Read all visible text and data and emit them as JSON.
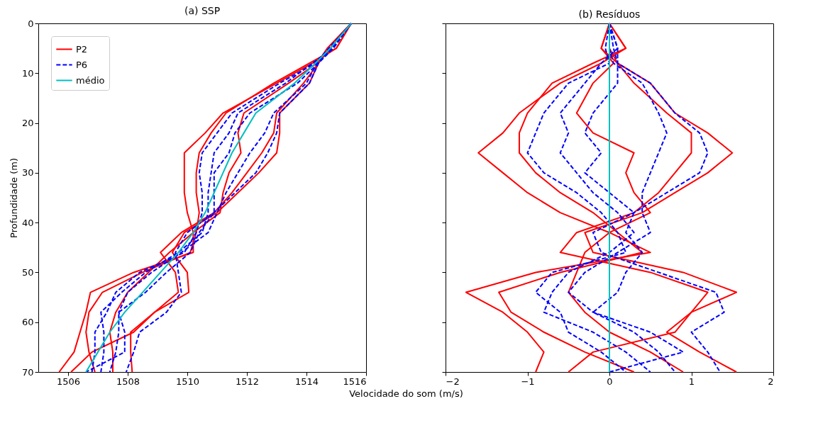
{
  "chart_data": [
    {
      "type": "line",
      "title": "(a) SSP",
      "xlabel": "Velocidade do som (m/s)",
      "ylabel": "Profundidade (m)",
      "xlim": [
        1505,
        1516
      ],
      "xticks": [
        1506,
        1508,
        1510,
        1512,
        1514,
        1516
      ],
      "ylim": [
        70,
        0
      ],
      "yticks": [
        0,
        10,
        20,
        30,
        40,
        50,
        60,
        70
      ],
      "grid": false,
      "legend": "top left",
      "series": [
        {
          "name": "P2",
          "color": "#ff0000",
          "line_style": "solid",
          "x": [
            1515.5,
            1515.0,
            1514.2,
            1513.0,
            1511.2,
            1510.6,
            1509.9,
            1509.9,
            1509.9,
            1510.0,
            1510.2,
            1510.2,
            1508.2,
            1506.75,
            1506.6,
            1506.4,
            1506.2,
            1505.7
          ],
          "values": [
            0,
            5,
            8,
            12,
            18,
            22,
            26,
            30,
            34,
            38,
            42,
            46,
            50,
            54,
            58,
            62,
            66,
            70
          ]
        },
        {
          "color": "#ff0000",
          "line_style": "solid",
          "x": [
            1515.5,
            1514.7,
            1514.4,
            1514.1,
            1513.1,
            1513.1,
            1513.0,
            1512.4,
            1511.7,
            1511.0,
            1509.9,
            1509.5,
            1510.0,
            1510.05,
            1508.9,
            1508.1,
            1508.1,
            1508.15
          ],
          "values": [
            0,
            5,
            8,
            12,
            18,
            22,
            26,
            30,
            34,
            38,
            42,
            46,
            50,
            54,
            58,
            62,
            66,
            70
          ]
        },
        {
          "color": "#ff0000",
          "line_style": "solid",
          "x": [
            1515.5,
            1515.0,
            1514.1,
            1512.9,
            1511.3,
            1510.8,
            1510.4,
            1510.3,
            1510.3,
            1510.4,
            1510.3,
            1510.1,
            1508.5,
            1507.15,
            1506.7,
            1506.6,
            1506.7,
            1506.9
          ],
          "values": [
            0,
            5,
            8,
            12,
            18,
            22,
            26,
            30,
            34,
            38,
            42,
            46,
            50,
            54,
            58,
            62,
            66,
            70
          ]
        },
        {
          "color": "#ff0000",
          "line_style": "solid",
          "x": [
            1515.5,
            1514.7,
            1514.35,
            1513.4,
            1511.9,
            1511.7,
            1511.8,
            1511.4,
            1511.2,
            1511.1,
            1510.2,
            1509.4,
            1508.7,
            1508.0,
            1507.6,
            1507.4,
            1507.5,
            1507.5
          ],
          "values": [
            0,
            5,
            8,
            12,
            18,
            22,
            26,
            30,
            34,
            38,
            42,
            46,
            50,
            54,
            58,
            62,
            66,
            70
          ]
        },
        {
          "color": "#ff0000",
          "line_style": "solid",
          "x": [
            1515.5,
            1514.8,
            1514.4,
            1513.9,
            1513.0,
            1512.9,
            1512.5,
            1512.0,
            1511.5,
            1510.9,
            1509.8,
            1509.1,
            1509.6,
            1509.7,
            1508.9,
            1508.2,
            1506.8,
            1506.1
          ],
          "values": [
            0,
            5,
            8,
            12,
            18,
            22,
            26,
            30,
            34,
            38,
            42,
            46,
            50,
            54,
            58,
            62,
            66,
            70
          ]
        },
        {
          "name": "P6",
          "color": "#0000ff",
          "line_style": "dashed",
          "x": [
            1515.5,
            1514.75,
            1514.3,
            1513.1,
            1511.5,
            1511.0,
            1510.5,
            1510.4,
            1510.5,
            1510.5,
            1510.3,
            1509.9,
            1508.4,
            1507.6,
            1507.3,
            1506.9,
            1506.9,
            1506.8
          ],
          "values": [
            0,
            5,
            8,
            12,
            18,
            22,
            26,
            30,
            34,
            38,
            42,
            46,
            50,
            54,
            58,
            62,
            66,
            70
          ]
        },
        {
          "color": "#0000ff",
          "line_style": "dashed",
          "x": [
            1515.5,
            1514.9,
            1514.4,
            1514.1,
            1513.1,
            1513.0,
            1512.7,
            1512.3,
            1511.6,
            1510.9,
            1510.0,
            1509.6,
            1509.7,
            1509.8,
            1509.3,
            1508.4,
            1508.2,
            1507.95
          ],
          "values": [
            0,
            5,
            8,
            12,
            18,
            22,
            26,
            30,
            34,
            38,
            42,
            46,
            50,
            54,
            58,
            62,
            66,
            70
          ]
        },
        {
          "color": "#0000ff",
          "line_style": "dashed",
          "x": [
            1515.5,
            1514.85,
            1514.4,
            1513.7,
            1512.1,
            1511.6,
            1511.4,
            1510.9,
            1510.9,
            1510.9,
            1510.4,
            1510.1,
            1509.3,
            1508.6,
            1507.7,
            1507.7,
            1507.6,
            1507.4
          ],
          "values": [
            0,
            5,
            8,
            12,
            18,
            22,
            26,
            30,
            34,
            38,
            42,
            46,
            50,
            54,
            58,
            62,
            66,
            70
          ]
        },
        {
          "color": "#0000ff",
          "line_style": "dashed",
          "x": [
            1515.5,
            1514.8,
            1514.35,
            1514.0,
            1512.9,
            1512.6,
            1512.1,
            1511.7,
            1511.3,
            1511.0,
            1510.7,
            1509.8,
            1508.8,
            1508.0,
            1507.7,
            1507.9,
            1507.9,
            1506.6
          ],
          "values": [
            0,
            5,
            8,
            12,
            18,
            22,
            26,
            30,
            34,
            38,
            42,
            46,
            50,
            54,
            58,
            62,
            66,
            70
          ]
        },
        {
          "color": "#0000ff",
          "line_style": "dashed",
          "x": [
            1515.5,
            1514.9,
            1514.2,
            1513.3,
            1511.7,
            1511.4,
            1510.9,
            1510.8,
            1510.7,
            1510.7,
            1510.5,
            1509.7,
            1508.6,
            1507.8,
            1507.1,
            1507.2,
            1507.2,
            1507.1
          ],
          "values": [
            0,
            5,
            8,
            12,
            18,
            22,
            26,
            30,
            34,
            38,
            42,
            46,
            50,
            54,
            58,
            62,
            66,
            70
          ]
        },
        {
          "name": "médio",
          "color": "#00bfbf",
          "line_style": "solid",
          "x": [
            1515.5,
            1514.8,
            1514.3,
            1513.6,
            1512.3,
            1511.9,
            1511.5,
            1511.2,
            1510.9,
            1510.6,
            1510.2,
            1509.7,
            1509.1,
            1508.5,
            1507.9,
            1507.4,
            1507.0,
            1506.6
          ],
          "values": [
            0,
            5,
            8,
            12,
            18,
            22,
            26,
            30,
            34,
            38,
            42,
            46,
            50,
            54,
            58,
            62,
            66,
            70
          ]
        }
      ]
    },
    {
      "type": "line",
      "title": "(b) Resíduos",
      "xlim": [
        -2,
        2
      ],
      "xticks": [
        -2,
        -1,
        0,
        1,
        2
      ],
      "ylim": [
        70,
        0
      ],
      "yticks": [
        0,
        10,
        20,
        30,
        40,
        50,
        60,
        70
      ],
      "tick_labels": "x",
      "grid": false,
      "series": [
        {
          "color": "#ff0000",
          "line_style": "solid",
          "x": [
            0,
            0.2,
            -0.1,
            -0.6,
            -1.1,
            -1.3,
            -1.6,
            -1.3,
            -1.0,
            -0.6,
            0,
            0.5,
            -0.9,
            -1.75,
            -1.3,
            -1.0,
            -0.8,
            -0.9
          ],
          "values": [
            0,
            5,
            8,
            12,
            18,
            22,
            26,
            30,
            34,
            38,
            42,
            46,
            50,
            54,
            58,
            62,
            66,
            70
          ]
        },
        {
          "color": "#ff0000",
          "line_style": "solid",
          "x": [
            0,
            -0.1,
            0.1,
            0.5,
            0.8,
            1.2,
            1.5,
            1.2,
            0.8,
            0.4,
            -0.3,
            -0.2,
            0.9,
            1.55,
            1.0,
            0.7,
            1.1,
            1.55
          ],
          "values": [
            0,
            5,
            8,
            12,
            18,
            22,
            26,
            30,
            34,
            38,
            42,
            46,
            50,
            54,
            58,
            62,
            66,
            70
          ]
        },
        {
          "color": "#ff0000",
          "line_style": "solid",
          "x": [
            0,
            0.2,
            -0.2,
            -0.7,
            -1.0,
            -1.1,
            -1.1,
            -0.9,
            -0.6,
            -0.2,
            0.1,
            0.4,
            -0.6,
            -1.35,
            -1.2,
            -0.8,
            -0.3,
            0.3
          ],
          "values": [
            0,
            5,
            8,
            12,
            18,
            22,
            26,
            30,
            34,
            38,
            42,
            46,
            50,
            54,
            58,
            62,
            66,
            70
          ]
        },
        {
          "color": "#ff0000",
          "line_style": "solid",
          "x": [
            0,
            -0.1,
            0.05,
            -0.2,
            -0.4,
            -0.2,
            0.3,
            0.2,
            0.3,
            0.5,
            0,
            -0.3,
            -0.4,
            -0.5,
            -0.3,
            0,
            0.5,
            0.9
          ],
          "values": [
            0,
            5,
            8,
            12,
            18,
            22,
            26,
            30,
            34,
            38,
            42,
            46,
            50,
            54,
            58,
            62,
            66,
            70
          ]
        },
        {
          "color": "#ff0000",
          "line_style": "solid",
          "x": [
            0,
            0,
            0.1,
            0.3,
            0.7,
            1.0,
            1.0,
            0.8,
            0.6,
            0.3,
            -0.4,
            -0.6,
            0.5,
            1.2,
            1.0,
            0.8,
            -0.2,
            -0.5
          ],
          "values": [
            0,
            5,
            8,
            12,
            18,
            22,
            26,
            30,
            34,
            38,
            42,
            46,
            50,
            54,
            58,
            62,
            66,
            70
          ]
        },
        {
          "color": "#0000ff",
          "line_style": "dashed",
          "x": [
            0,
            -0.05,
            0,
            -0.5,
            -0.8,
            -0.9,
            -1.0,
            -0.8,
            -0.4,
            -0.1,
            0.1,
            0.2,
            -0.7,
            -0.9,
            -0.6,
            -0.5,
            -0.1,
            0.2
          ],
          "values": [
            0,
            5,
            8,
            12,
            18,
            22,
            26,
            30,
            34,
            38,
            42,
            46,
            50,
            54,
            58,
            62,
            66,
            70
          ]
        },
        {
          "color": "#0000ff",
          "line_style": "dashed",
          "x": [
            0,
            0.1,
            0.1,
            0.5,
            0.8,
            1.1,
            1.2,
            1.1,
            0.7,
            0.3,
            -0.2,
            -0.1,
            0.6,
            1.3,
            1.4,
            1.0,
            1.2,
            1.35
          ],
          "values": [
            0,
            5,
            8,
            12,
            18,
            22,
            26,
            30,
            34,
            38,
            42,
            46,
            50,
            54,
            58,
            62,
            66,
            70
          ]
        },
        {
          "color": "#0000ff",
          "line_style": "dashed",
          "x": [
            0,
            0.05,
            0.1,
            0.1,
            -0.2,
            -0.3,
            -0.1,
            -0.3,
            0,
            0.3,
            0.2,
            0.4,
            0.2,
            0.1,
            -0.2,
            0.3,
            0.6,
            0.8
          ],
          "values": [
            0,
            5,
            8,
            12,
            18,
            22,
            26,
            30,
            34,
            38,
            42,
            46,
            50,
            54,
            58,
            62,
            66,
            70
          ]
        },
        {
          "color": "#0000ff",
          "line_style": "dashed",
          "x": [
            0,
            0,
            0.05,
            0.4,
            0.6,
            0.7,
            0.6,
            0.5,
            0.4,
            0.4,
            0.5,
            0.1,
            -0.3,
            -0.5,
            -0.2,
            0.5,
            0.9,
            0
          ],
          "values": [
            0,
            5,
            8,
            12,
            18,
            22,
            26,
            30,
            34,
            38,
            42,
            46,
            50,
            54,
            58,
            62,
            66,
            70
          ]
        },
        {
          "color": "#0000ff",
          "line_style": "dashed",
          "x": [
            0,
            0.1,
            -0.1,
            -0.3,
            -0.6,
            -0.5,
            -0.6,
            -0.4,
            -0.2,
            0.1,
            0.3,
            0,
            -0.5,
            -0.7,
            -0.8,
            -0.2,
            0.2,
            0.5
          ],
          "values": [
            0,
            5,
            8,
            12,
            18,
            22,
            26,
            30,
            34,
            38,
            42,
            46,
            50,
            54,
            58,
            62,
            66,
            70
          ]
        },
        {
          "color": "#00bfbf",
          "line_style": "solid",
          "x": [
            0,
            0,
            0,
            0,
            0,
            0,
            0,
            0,
            0,
            0,
            0,
            0,
            0,
            0,
            0,
            0,
            0,
            0
          ],
          "values": [
            0,
            5,
            8,
            12,
            18,
            22,
            26,
            30,
            34,
            38,
            42,
            46,
            50,
            54,
            58,
            62,
            66,
            70
          ]
        }
      ]
    }
  ]
}
